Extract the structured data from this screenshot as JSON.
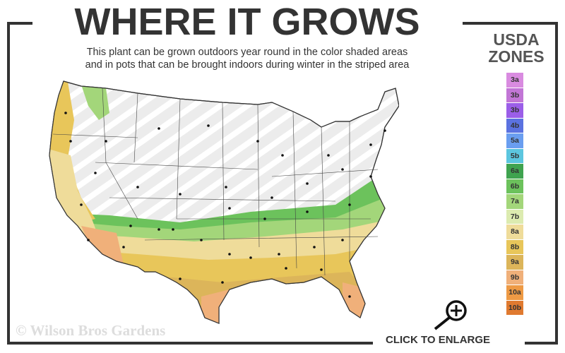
{
  "header": {
    "title": "WHERE IT GROWS",
    "subtitle_line1": "This plant can be grown outdoors year round in the color shaded areas",
    "subtitle_line2": "and in pots that can be brought indoors during winter in the striped area"
  },
  "legend": {
    "title_line1": "USDA",
    "title_line2": "ZONES",
    "zones": [
      {
        "label": "3a",
        "color": "#d98be0"
      },
      {
        "label": "3b",
        "color": "#c276d6"
      },
      {
        "label": "3b",
        "color": "#9b5ee8"
      },
      {
        "label": "4b",
        "color": "#5b72e0"
      },
      {
        "label": "5a",
        "color": "#6a9ef0"
      },
      {
        "label": "5b",
        "color": "#5cc6df"
      },
      {
        "label": "6a",
        "color": "#3fa34f"
      },
      {
        "label": "6b",
        "color": "#6cc25c"
      },
      {
        "label": "7a",
        "color": "#a3d67a"
      },
      {
        "label": "7b",
        "color": "#dcebb0"
      },
      {
        "label": "8a",
        "color": "#efdc9a"
      },
      {
        "label": "8b",
        "color": "#e8c65a"
      },
      {
        "label": "9a",
        "color": "#dcb55a"
      },
      {
        "label": "9b",
        "color": "#f0b07a"
      },
      {
        "label": "10a",
        "color": "#ee9a45"
      },
      {
        "label": "10b",
        "color": "#e07a30"
      }
    ]
  },
  "map": {
    "striped_area_color": "#ececec",
    "growing_zone_colors": [
      "#6cc25c",
      "#a3d67a",
      "#efdc9a",
      "#e8c65a",
      "#dcb55a",
      "#f0b07a"
    ]
  },
  "watermark": "© Wilson Bros Gardens",
  "enlarge": {
    "label": "CLICK TO ENLARGE",
    "icon": "zoom-in-icon"
  }
}
